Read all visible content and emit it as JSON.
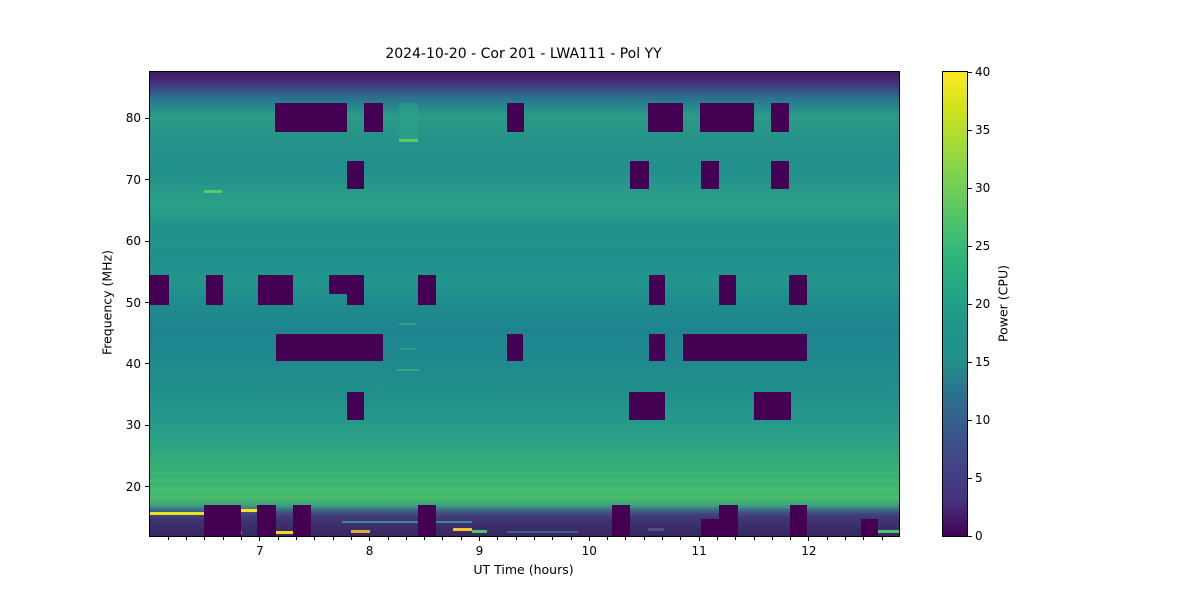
{
  "figure": {
    "title": "2024-10-20 - Cor 201 - LWA111 - Pol YY"
  },
  "chart_data": {
    "type": "heatmap",
    "title": "2024-10-20 - Cor 201 - LWA111 - Pol YY",
    "xlabel": "UT Time (hours)",
    "ylabel": "Frequency (MHz)",
    "x_range_hours": [
      6.0,
      12.82
    ],
    "y_range_mhz": [
      12.0,
      87.5
    ],
    "x_ticks": [
      7,
      8,
      9,
      10,
      11,
      12
    ],
    "x_minor_tick_interval": 0.166667,
    "y_ticks": [
      20,
      30,
      40,
      50,
      60,
      70,
      80
    ],
    "grid": false,
    "colormap": "viridis",
    "flag_color": "#440154",
    "colorbar": {
      "label": "Power (CPU)",
      "range": [
        0,
        40
      ],
      "ticks": [
        0,
        5,
        10,
        15,
        20,
        25,
        30,
        35,
        40
      ],
      "gradient_top_to_bottom": [
        "#fde725",
        "#d2e21b",
        "#a5db36",
        "#7ad151",
        "#54c568",
        "#35b779",
        "#22a884",
        "#1f978b",
        "#21918c",
        "#2c728e",
        "#38598c",
        "#414487",
        "#46327e",
        "#440154"
      ]
    },
    "background_profile_mhz_power": [
      [
        88,
        2
      ],
      [
        86,
        7
      ],
      [
        84,
        13
      ],
      [
        82,
        17
      ],
      [
        80,
        21
      ],
      [
        76,
        21
      ],
      [
        70,
        22
      ],
      [
        67,
        23
      ],
      [
        64,
        23
      ],
      [
        60,
        21
      ],
      [
        55,
        21
      ],
      [
        50,
        19
      ],
      [
        45,
        19
      ],
      [
        40,
        20
      ],
      [
        35,
        20
      ],
      [
        30,
        21
      ],
      [
        25,
        23
      ],
      [
        22,
        25
      ],
      [
        20,
        26
      ],
      [
        18,
        27
      ],
      [
        16.5,
        20
      ],
      [
        15,
        8
      ],
      [
        13,
        5
      ],
      [
        12,
        4
      ]
    ],
    "bg_gradient": [
      {
        "pos": 0.0,
        "color": "#3a1c5f"
      },
      {
        "pos": 0.013,
        "color": "#452470"
      },
      {
        "pos": 0.028,
        "color": "#403a80"
      },
      {
        "pos": 0.043,
        "color": "#345a8a"
      },
      {
        "pos": 0.058,
        "color": "#2b748e"
      },
      {
        "pos": 0.077,
        "color": "#278b8c"
      },
      {
        "pos": 0.098,
        "color": "#2b9c86"
      },
      {
        "pos": 0.125,
        "color": "#289588"
      },
      {
        "pos": 0.16,
        "color": "#24918b"
      },
      {
        "pos": 0.21,
        "color": "#21908c"
      },
      {
        "pos": 0.252,
        "color": "#28998a"
      },
      {
        "pos": 0.288,
        "color": "#2aa186"
      },
      {
        "pos": 0.32,
        "color": "#23948b"
      },
      {
        "pos": 0.4,
        "color": "#20908d"
      },
      {
        "pos": 0.45,
        "color": "#22968b"
      },
      {
        "pos": 0.505,
        "color": "#1f8a8e"
      },
      {
        "pos": 0.558,
        "color": "#1e858e"
      },
      {
        "pos": 0.62,
        "color": "#1f898d"
      },
      {
        "pos": 0.7,
        "color": "#21918b"
      },
      {
        "pos": 0.757,
        "color": "#26998a"
      },
      {
        "pos": 0.8,
        "color": "#2ba383"
      },
      {
        "pos": 0.83,
        "color": "#31aa7e"
      },
      {
        "pos": 0.862,
        "color": "#37b078"
      },
      {
        "pos": 0.893,
        "color": "#3eb573"
      },
      {
        "pos": 0.918,
        "color": "#46ba6e"
      },
      {
        "pos": 0.933,
        "color": "#3fa47a"
      },
      {
        "pos": 0.944,
        "color": "#3d6b88"
      },
      {
        "pos": 0.954,
        "color": "#41417c"
      },
      {
        "pos": 0.968,
        "color": "#3e3271"
      },
      {
        "pos": 1.0,
        "color": "#382660"
      }
    ],
    "flagged_regions": [
      {
        "t0": 7.14,
        "t1": 7.79,
        "f0": 77.7,
        "f1": 82.4
      },
      {
        "t0": 7.95,
        "t1": 8.12,
        "f0": 77.7,
        "f1": 82.4
      },
      {
        "t0": 9.25,
        "t1": 9.41,
        "f0": 77.7,
        "f1": 82.4
      },
      {
        "t0": 10.53,
        "t1": 10.85,
        "f0": 77.7,
        "f1": 82.4
      },
      {
        "t0": 11.01,
        "t1": 11.5,
        "f0": 77.7,
        "f1": 82.4
      },
      {
        "t0": 11.65,
        "t1": 11.82,
        "f0": 77.7,
        "f1": 82.4
      },
      {
        "t0": 7.79,
        "t1": 7.95,
        "f0": 68.4,
        "f1": 73.0
      },
      {
        "t0": 10.37,
        "t1": 10.54,
        "f0": 68.4,
        "f1": 73.0
      },
      {
        "t0": 11.02,
        "t1": 11.18,
        "f0": 68.4,
        "f1": 73.0
      },
      {
        "t0": 11.65,
        "t1": 11.82,
        "f0": 68.4,
        "f1": 73.0
      },
      {
        "t0": 6.0,
        "t1": 6.17,
        "f0": 49.6,
        "f1": 54.4
      },
      {
        "t0": 6.51,
        "t1": 6.66,
        "f0": 49.6,
        "f1": 54.4
      },
      {
        "t0": 6.98,
        "t1": 7.3,
        "f0": 49.6,
        "f1": 54.4
      },
      {
        "t0": 7.63,
        "t1": 7.95,
        "f0": 51.4,
        "f1": 54.4
      },
      {
        "t0": 7.79,
        "t1": 7.95,
        "f0": 49.6,
        "f1": 51.4
      },
      {
        "t0": 8.44,
        "t1": 8.6,
        "f0": 49.6,
        "f1": 54.4
      },
      {
        "t0": 10.54,
        "t1": 10.69,
        "f0": 49.6,
        "f1": 54.4
      },
      {
        "t0": 11.18,
        "t1": 11.34,
        "f0": 49.6,
        "f1": 54.4
      },
      {
        "t0": 11.82,
        "t1": 11.98,
        "f0": 49.6,
        "f1": 54.4
      },
      {
        "t0": 7.15,
        "t1": 8.12,
        "f0": 40.4,
        "f1": 44.9
      },
      {
        "t0": 9.25,
        "t1": 9.4,
        "f0": 40.4,
        "f1": 44.9
      },
      {
        "t0": 10.54,
        "t1": 10.69,
        "f0": 40.4,
        "f1": 44.9
      },
      {
        "t0": 10.85,
        "t1": 11.98,
        "f0": 40.4,
        "f1": 44.9
      },
      {
        "t0": 7.79,
        "t1": 7.95,
        "f0": 30.8,
        "f1": 35.5
      },
      {
        "t0": 10.36,
        "t1": 10.69,
        "f0": 30.8,
        "f1": 35.5
      },
      {
        "t0": 11.5,
        "t1": 11.84,
        "f0": 30.8,
        "f1": 35.5
      },
      {
        "t0": 6.49,
        "t1": 6.83,
        "f0": 12.0,
        "f1": 17.1
      },
      {
        "t0": 6.97,
        "t1": 7.15,
        "f0": 12.0,
        "f1": 17.1
      },
      {
        "t0": 7.3,
        "t1": 7.47,
        "f0": 12.0,
        "f1": 17.1
      },
      {
        "t0": 8.44,
        "t1": 8.6,
        "f0": 12.0,
        "f1": 17.1
      },
      {
        "t0": 10.21,
        "t1": 10.37,
        "f0": 12.0,
        "f1": 17.1
      },
      {
        "t0": 11.18,
        "t1": 11.35,
        "f0": 12.0,
        "f1": 17.1
      },
      {
        "t0": 11.83,
        "t1": 11.98,
        "f0": 12.0,
        "f1": 17.1
      },
      {
        "t0": 11.02,
        "t1": 11.18,
        "f0": 12.0,
        "f1": 14.7
      },
      {
        "t0": 12.47,
        "t1": 12.63,
        "f0": 12.0,
        "f1": 14.7
      }
    ],
    "patches": [
      {
        "t0": 8.27,
        "t1": 8.44,
        "f0": 76.6,
        "f1": 82.4,
        "color": "#2ea487",
        "opacity": 0.55
      }
    ],
    "h_lines": [
      {
        "f": 81.5,
        "color": "#2e8a8c",
        "opacity": 0.5,
        "h": 2
      },
      {
        "f": 75.5,
        "color": "#2a9b88",
        "opacity": 0.5,
        "h": 2
      },
      {
        "f": 66.5,
        "color": "#2a9d88",
        "opacity": 0.5,
        "h": 2
      },
      {
        "f": 64.0,
        "color": "#2ba186",
        "opacity": 0.45,
        "h": 3
      },
      {
        "f": 56.5,
        "color": "#1d858e",
        "opacity": 0.5,
        "h": 2
      },
      {
        "f": 47.0,
        "color": "#1d838e",
        "opacity": 0.4,
        "h": 3
      },
      {
        "f": 36.5,
        "color": "#239489",
        "opacity": 0.4,
        "h": 2
      },
      {
        "f": 25.1,
        "color": "#3bb175",
        "opacity": 0.7,
        "h": 2
      },
      {
        "f": 23.8,
        "color": "#40b571",
        "opacity": 0.6,
        "h": 2
      },
      {
        "f": 22.4,
        "color": "#45b96e",
        "opacity": 0.6,
        "h": 2
      },
      {
        "f": 21.1,
        "color": "#4bbd6b",
        "opacity": 0.55,
        "h": 2
      },
      {
        "f": 19.6,
        "color": "#52c268",
        "opacity": 0.6,
        "h": 2
      },
      {
        "f": 18.4,
        "color": "#58c465",
        "opacity": 0.5,
        "h": 2
      }
    ],
    "streaks": [
      {
        "t0": 8.27,
        "t1": 8.44,
        "f": 76.3,
        "color": "#5ec962",
        "h": 3,
        "opacity": 1
      },
      {
        "t0": 6.49,
        "t1": 6.66,
        "f": 68.0,
        "color": "#5ec962",
        "h": 3,
        "opacity": 1
      },
      {
        "t0": 8.27,
        "t1": 8.42,
        "f": 46.5,
        "color": "#34a77f",
        "h": 2,
        "opacity": 0.8
      },
      {
        "t0": 8.27,
        "t1": 8.42,
        "f": 42.5,
        "color": "#34a77f",
        "h": 2,
        "opacity": 0.7
      },
      {
        "t0": 8.25,
        "t1": 8.45,
        "f": 39.0,
        "color": "#3fae74",
        "h": 2,
        "opacity": 0.8
      },
      {
        "t0": 6.0,
        "t1": 6.49,
        "f": 15.7,
        "color": "#e6e41c",
        "h": 3,
        "opacity": 1
      },
      {
        "t0": 6.83,
        "t1": 6.97,
        "f": 16.1,
        "color": "#ffe31e",
        "h": 3,
        "opacity": 1
      },
      {
        "t0": 6.78,
        "t1": 6.84,
        "f": 12.6,
        "color": "#2f9d8c",
        "h": 3,
        "opacity": 0.9
      },
      {
        "t0": 7.15,
        "t1": 7.31,
        "f": 12.5,
        "color": "#f2da21",
        "h": 3,
        "opacity": 1
      },
      {
        "t0": 7.83,
        "t1": 8.0,
        "f": 12.8,
        "color": "#dfae24",
        "h": 3,
        "opacity": 1
      },
      {
        "t0": 7.75,
        "t1": 8.93,
        "f": 14.3,
        "color": "#3a9f92",
        "h": 2,
        "opacity": 0.85
      },
      {
        "t0": 8.76,
        "t1": 8.93,
        "f": 13.0,
        "color": "#fbc02d",
        "h": 3,
        "opacity": 1
      },
      {
        "t0": 8.93,
        "t1": 9.07,
        "f": 12.8,
        "color": "#4fc06d",
        "h": 3,
        "opacity": 1
      },
      {
        "t0": 9.25,
        "t1": 9.9,
        "f": 12.7,
        "color": "#3e6f95",
        "h": 2,
        "opacity": 0.8
      },
      {
        "t0": 10.53,
        "t1": 10.68,
        "f": 13.0,
        "color": "#52538f",
        "h": 3,
        "opacity": 0.9
      },
      {
        "t0": 12.63,
        "t1": 12.82,
        "f": 12.8,
        "color": "#4fc06d",
        "h": 3,
        "opacity": 1
      }
    ]
  }
}
